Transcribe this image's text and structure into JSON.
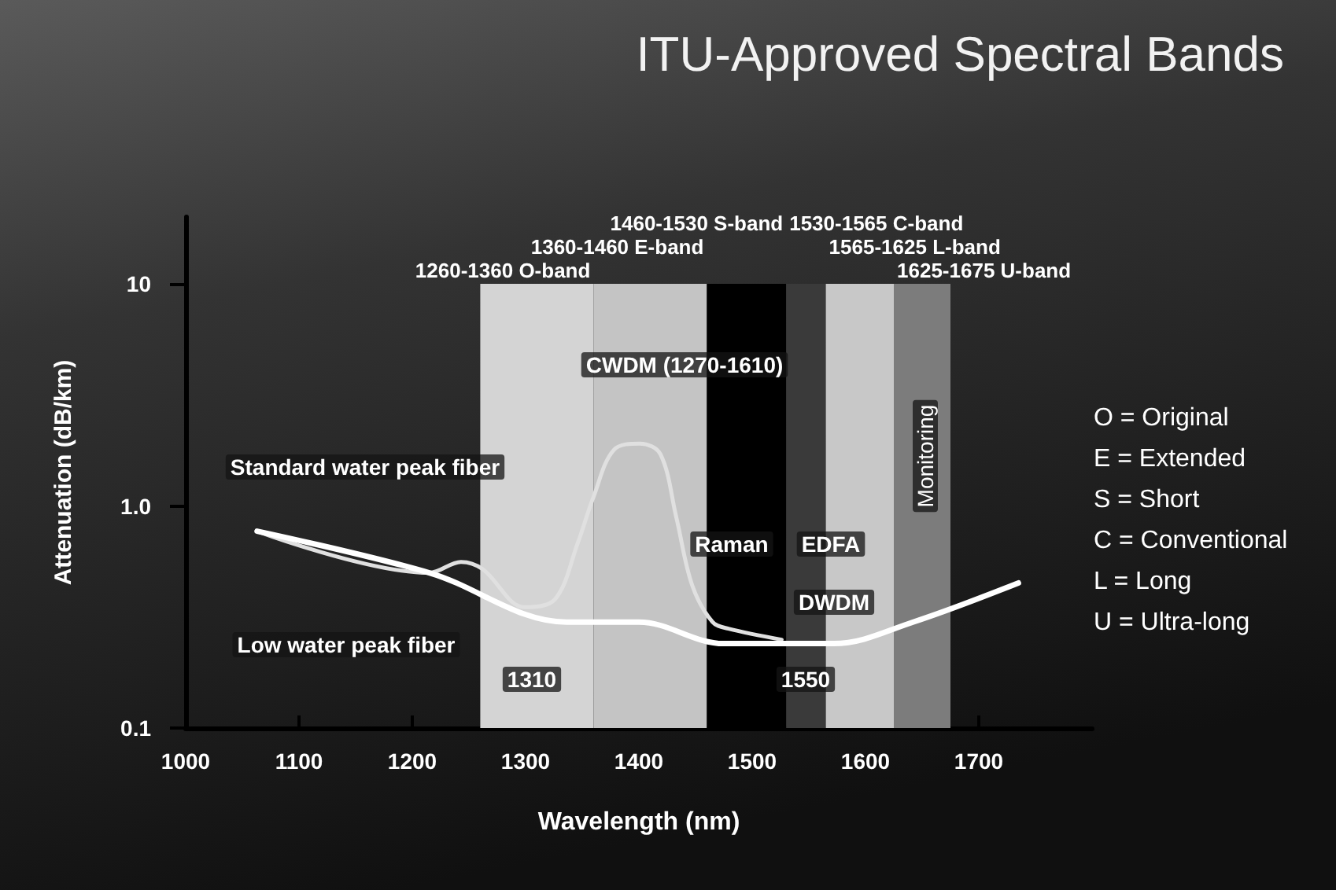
{
  "chart_data": {
    "type": "line",
    "title": "ITU-Approved Spectral Bands",
    "xlabel": "Wavelength (nm)",
    "ylabel": "Attenuation (dB/km)",
    "series": [
      {
        "type": "line",
        "color": "#e0e0e0",
        "x": [
          1063,
          1215,
          1243,
          1262,
          1299,
          1326,
          1346,
          1360,
          1378,
          1401,
          1419,
          1433,
          1447,
          1465,
          1479,
          1526
        ],
        "values": [
          0.77,
          0.5,
          0.56,
          0.52,
          0.35,
          0.38,
          0.68,
          1.1,
          1.79,
          1.91,
          1.71,
          0.89,
          0.44,
          0.3,
          0.28,
          0.25
        ]
      },
      {
        "type": "line",
        "color": "#ffffff",
        "x": [
          1063,
          1215,
          1336,
          1400,
          1475,
          1572,
          1642,
          1735
        ],
        "values": [
          0.77,
          0.5,
          0.3,
          0.3,
          0.24,
          0.24,
          0.3,
          0.45
        ]
      }
    ],
    "xlim": [
      1000,
      1800
    ],
    "xticks": [
      1000,
      1100,
      1200,
      1300,
      1400,
      1500,
      1600,
      1700
    ],
    "ylim": [
      0.1,
      20
    ],
    "yticks": [
      0.1,
      {
        "value": 1,
        "label": "1.0"
      },
      10
    ],
    "log": "y",
    "grid": false,
    "marker": "none",
    "line_style": "solid",
    "bands": [
      {
        "axis": "x",
        "from": 1260,
        "to": 1360,
        "label": "1260-1360 O-band",
        "color": "#d4d4d4"
      },
      {
        "axis": "x",
        "from": 1360,
        "to": 1460,
        "label": "1360-1460 E-band",
        "color": "#c4c4c4"
      },
      {
        "axis": "x",
        "from": 1460,
        "to": 1530,
        "label": "1460-1530 S-band",
        "color": "#000000"
      },
      {
        "axis": "x",
        "from": 1530,
        "to": 1565,
        "label": "1530-1565 C-band",
        "color": "#3a3a3a"
      },
      {
        "axis": "x",
        "from": 1565,
        "to": 1625,
        "label": "1565-1625 L-band",
        "color": "#c8c8c8"
      },
      {
        "axis": "x",
        "from": 1625,
        "to": 1675,
        "label": "1625-1675 U-band",
        "color": "#7c7c7c"
      }
    ],
    "annotations": [
      "CWDM (1270-1610)",
      "Standard water peak fiber",
      "Low water peak fiber",
      "Raman",
      "EDFA",
      "DWDM",
      "1310",
      "1550",
      "Monitoring",
      "O = Original",
      "E = Extended",
      "S = Short",
      "C = Conventional",
      "L = Long",
      "U = Ultra-long"
    ]
  }
}
